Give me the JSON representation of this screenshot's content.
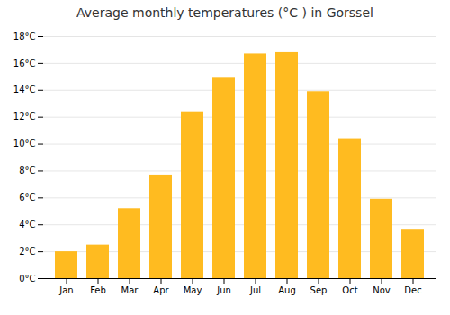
{
  "chart_data": {
    "type": "bar",
    "title": "Average monthly temperatures (°C ) in Gorssel",
    "categories": [
      "Jan",
      "Feb",
      "Mar",
      "Apr",
      "May",
      "Jun",
      "Jul",
      "Aug",
      "Sep",
      "Oct",
      "Nov",
      "Dec"
    ],
    "values": [
      2.0,
      2.5,
      5.2,
      7.7,
      12.4,
      14.9,
      16.7,
      16.8,
      13.9,
      10.4,
      5.9,
      3.6
    ],
    "color": "#FFBB20",
    "ylim": [
      0,
      18
    ],
    "yticks": [
      {
        "value": 0,
        "label": "0°C"
      },
      {
        "value": 2,
        "label": "2°C"
      },
      {
        "value": 4,
        "label": "4°C"
      },
      {
        "value": 6,
        "label": "6°C"
      },
      {
        "value": 8,
        "label": "8°C"
      },
      {
        "value": 10,
        "label": "10°C"
      },
      {
        "value": 12,
        "label": "12°C"
      },
      {
        "value": 14,
        "label": "14°C"
      },
      {
        "value": 16,
        "label": "16°C"
      },
      {
        "value": 18,
        "label": "18°C"
      }
    ],
    "grid": true
  }
}
